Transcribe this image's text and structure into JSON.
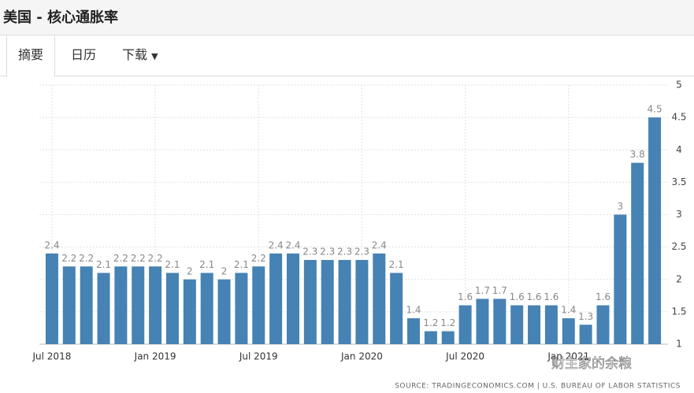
{
  "header": {
    "title": "美国 - 核心通胀率"
  },
  "tabs": [
    "摘要",
    "日历",
    "下载"
  ],
  "chart_data": {
    "type": "bar",
    "categories": [
      "Jul 2018",
      null,
      null,
      null,
      null,
      null,
      "Jan 2019",
      null,
      null,
      null,
      null,
      null,
      "Jul 2019",
      null,
      null,
      null,
      null,
      null,
      "Jan 2020",
      null,
      null,
      null,
      null,
      null,
      "Jul 2020",
      null,
      null,
      null,
      null,
      null,
      "Jan 2021",
      null,
      null,
      null,
      null,
      null
    ],
    "values": [
      2.4,
      2.2,
      2.2,
      2.1,
      2.2,
      2.2,
      2.2,
      2.1,
      2,
      2.1,
      2,
      2.1,
      2.2,
      2.4,
      2.4,
      2.3,
      2.3,
      2.3,
      2.3,
      2.4,
      2.1,
      1.4,
      1.2,
      1.2,
      1.6,
      1.7,
      1.7,
      1.6,
      1.6,
      1.6,
      1.4,
      1.3,
      1.6,
      3,
      3.8,
      4.5
    ],
    "color": "#4682b4",
    "ylim": [
      1,
      5
    ],
    "yticks": [
      1,
      1.5,
      2,
      2.5,
      3,
      3.5,
      4,
      4.5,
      5
    ],
    "grid": true,
    "source": "SOURCE: TRADINGECONOMICS.COM | U.S. BUREAU OF LABOR STATISTICS",
    "watermark": "财主家的余粮"
  }
}
